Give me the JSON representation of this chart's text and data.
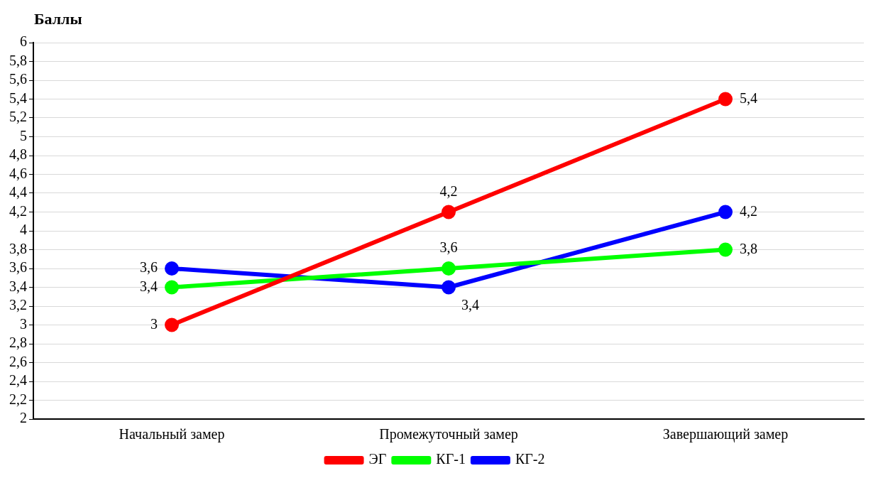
{
  "chart_data": {
    "type": "line",
    "ylabel": "Баллы",
    "categories": [
      "Начальный замер",
      "Промежуточный замер",
      "Завершающий замер"
    ],
    "series": [
      {
        "name": "ЭГ",
        "color": "#ff0000",
        "values": [
          3,
          4.2,
          5.4
        ],
        "value_labels": [
          "3",
          "4,2",
          "5,4"
        ]
      },
      {
        "name": "КГ-1",
        "color": "#00ff00",
        "values": [
          3.4,
          3.6,
          3.8
        ],
        "value_labels": [
          "3,4",
          "3,6",
          "3,8"
        ]
      },
      {
        "name": "КГ-2",
        "color": "#0000ff",
        "values": [
          3.6,
          3.4,
          4.2
        ],
        "value_labels": [
          "3,6",
          "3,4",
          "4,2"
        ]
      }
    ],
    "ylim": [
      2,
      6
    ],
    "yticks": [
      2,
      {
        "value": 2.2,
        "label": "2,2"
      },
      {
        "value": 2.4,
        "label": "2,4"
      },
      {
        "value": 2.6,
        "label": "2,6"
      },
      {
        "value": 2.8,
        "label": "2,8"
      },
      3,
      {
        "value": 3.2,
        "label": "3,2"
      },
      {
        "value": 3.4,
        "label": "3,4"
      },
      {
        "value": 3.6,
        "label": "3,6"
      },
      {
        "value": 3.8,
        "label": "3,8"
      },
      4,
      {
        "value": 4.2,
        "label": "4,2"
      },
      {
        "value": 4.4,
        "label": "4,4"
      },
      {
        "value": 4.6,
        "label": "4,6"
      },
      {
        "value": 4.8,
        "label": "4,8"
      },
      5,
      {
        "value": 5.2,
        "label": "5,2"
      },
      {
        "value": 5.4,
        "label": "5,4"
      },
      {
        "value": 5.6,
        "label": "5,6"
      },
      {
        "value": 5.8,
        "label": "5,8"
      },
      6
    ],
    "grid": "y",
    "legend": "bottom",
    "marker": "circle",
    "line_style": "solid"
  }
}
